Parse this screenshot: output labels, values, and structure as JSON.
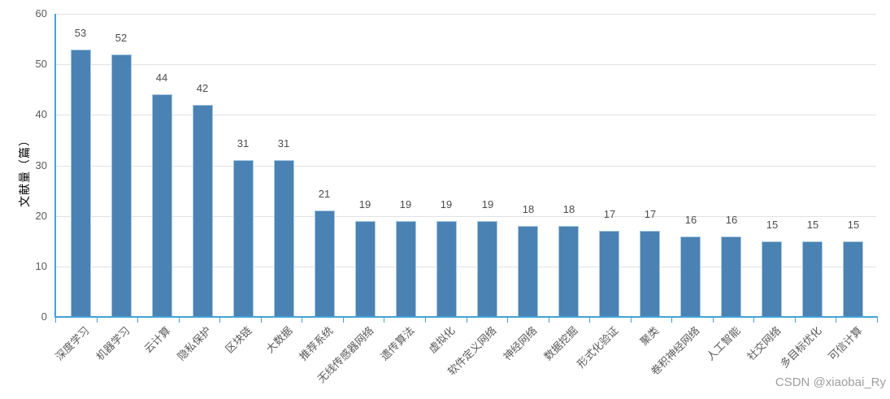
{
  "chart_data": {
    "type": "bar",
    "title": "",
    "xlabel": "",
    "ylabel": "文献量（篇）",
    "ylim": [
      0,
      60
    ],
    "yticks": [
      0,
      10,
      20,
      30,
      40,
      50,
      60
    ],
    "grid": true,
    "legend": false,
    "categories": [
      "深度学习",
      "机器学习",
      "云计算",
      "隐私保护",
      "区块链",
      "大数据",
      "推荐系统",
      "无线传感器网络",
      "遗传算法",
      "虚拟化",
      "软件定义网络",
      "神经网络",
      "数据挖掘",
      "形式化验证",
      "聚类",
      "卷积神经网络",
      "人工智能",
      "社交网络",
      "多目标优化",
      "可信计算"
    ],
    "values": [
      53,
      52,
      44,
      42,
      31,
      31,
      21,
      19,
      19,
      19,
      19,
      18,
      18,
      17,
      17,
      16,
      16,
      15,
      15,
      15
    ],
    "colors": {
      "bar_fill": "#4a82b3",
      "bar_border": "#a9c8e1",
      "axis_line": "#42a2d8",
      "gridline": "#e2e2e2",
      "tick_label": "#595959",
      "value_label": "#4c4c4c",
      "category_label": "#595959",
      "watermark": "#9e9e9e"
    }
  },
  "watermark": "CSDN @xiaobai_Ry"
}
